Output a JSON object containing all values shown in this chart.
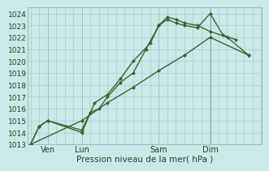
{
  "background_color": "#cce8e8",
  "grid_color": "#aacccc",
  "line_color": "#336633",
  "xlabel": "Pression niveau de la mer( hPa )",
  "xtick_labels": [
    "Ven",
    "Lun",
    "Sam",
    "Dim"
  ],
  "yticks": [
    1013,
    1014,
    1015,
    1016,
    1017,
    1018,
    1019,
    1020,
    1021,
    1022,
    1023,
    1024
  ],
  "line1_x": [
    0.0,
    0.33,
    0.67,
    2.0,
    2.5,
    3.0,
    3.5,
    4.0,
    4.67,
    5.0,
    5.33,
    5.67,
    6.0,
    6.5,
    7.0,
    7.5,
    8.0
  ],
  "line1_y": [
    1013,
    1014.5,
    1015.0,
    1014.0,
    1016.5,
    1017.2,
    1018.5,
    1020.0,
    1021.5,
    1023.0,
    1023.5,
    1023.2,
    1023.0,
    1022.8,
    1024.0,
    1022.2,
    1021.8
  ],
  "line2_x": [
    0.0,
    0.33,
    0.67,
    2.0,
    2.33,
    2.67,
    3.0,
    3.5,
    4.0,
    4.5,
    5.0,
    5.33,
    5.67,
    6.0,
    6.5,
    7.0,
    7.67,
    8.5
  ],
  "line2_y": [
    1013,
    1014.5,
    1015.0,
    1014.2,
    1015.7,
    1016.0,
    1017.0,
    1018.2,
    1019.0,
    1021.0,
    1023.0,
    1023.7,
    1023.5,
    1023.2,
    1023.0,
    1022.5,
    1022.0,
    1020.5
  ],
  "line3_x": [
    0.0,
    2.0,
    3.0,
    4.0,
    5.0,
    6.0,
    7.0,
    8.5
  ],
  "line3_y": [
    1013,
    1015.0,
    1016.5,
    1017.8,
    1019.2,
    1020.5,
    1022.0,
    1020.5
  ],
  "vlines_x": [
    0.67,
    2.0,
    5.0,
    7.0
  ],
  "xlim": [
    -0.1,
    9.0
  ],
  "ylim": [
    1013,
    1024.5
  ],
  "ms": 2.5,
  "lw": 1.0
}
